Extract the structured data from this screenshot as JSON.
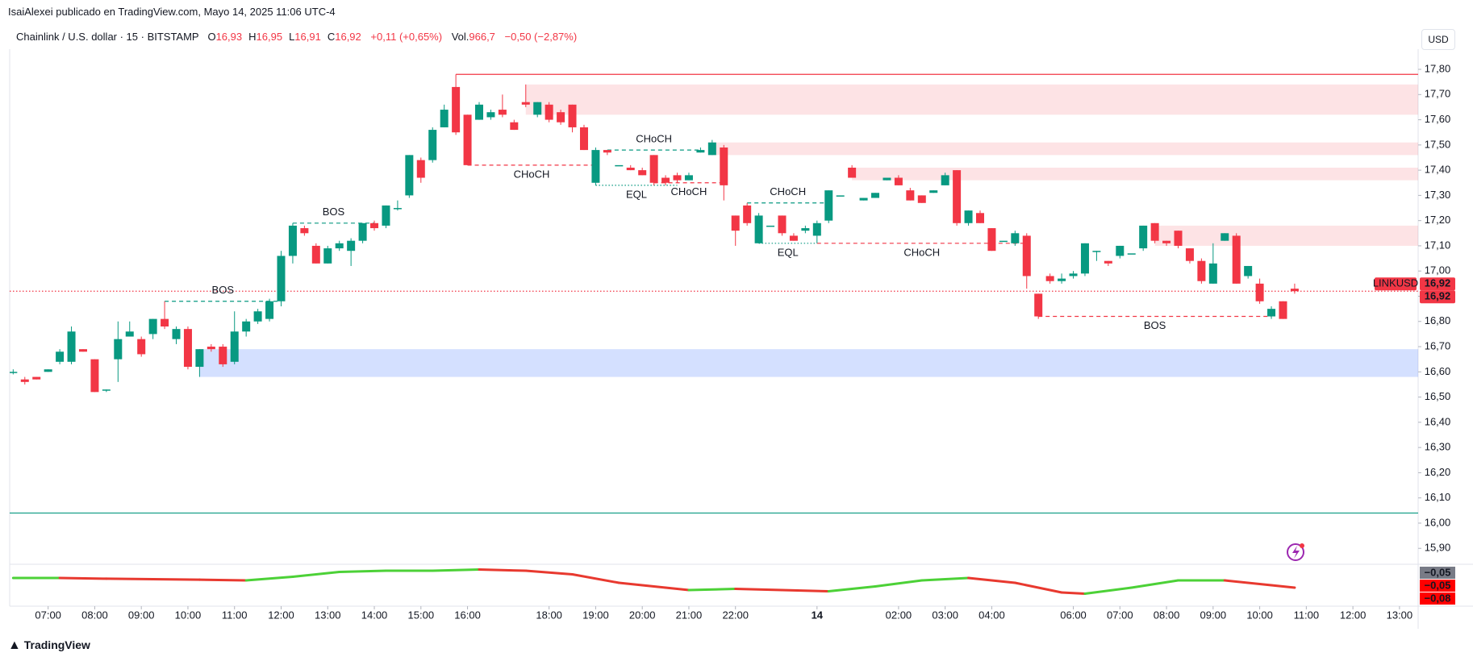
{
  "header": {
    "publisher": "IsaiAlexei publicado en TradingView.com, Mayo 14, 2025 11:06 UTC-4",
    "brand": "TradingView",
    "currency": "USD"
  },
  "chart_data": {
    "type": "candlestick",
    "legend": {
      "symbol": "Chainlink / U.S. dollar · 15 · BITSTAMP",
      "items": [
        {
          "key": "O",
          "value": "16,93"
        },
        {
          "key": "H",
          "value": "16,95"
        },
        {
          "key": "L",
          "value": "16,91"
        },
        {
          "key": "C",
          "value": "16,92"
        }
      ],
      "change": "+0,11 (+0,65%)",
      "volume_key": "Vol.",
      "volume": "966,7",
      "volume_change": "−0,50 (−2,87%)"
    },
    "up_color": "#089981",
    "down_color": "#f23645",
    "x": [
      0,
      1,
      2,
      3,
      4,
      5,
      6,
      7,
      8,
      9,
      10,
      11,
      12,
      13,
      14,
      15,
      16,
      17,
      18,
      19,
      20,
      21,
      22,
      23,
      24,
      25,
      26,
      27,
      28,
      29,
      30,
      31,
      32,
      33,
      34,
      35,
      36,
      37,
      38,
      39,
      40,
      41,
      42,
      43,
      44,
      45,
      46,
      47,
      48,
      49,
      50,
      51,
      52,
      53,
      54,
      55,
      56,
      57,
      58,
      59,
      60,
      61,
      62,
      63,
      64,
      65,
      66,
      67,
      68,
      69,
      70,
      71,
      72,
      73,
      74,
      75,
      76,
      77,
      78,
      79,
      80,
      81,
      82,
      83,
      84,
      85,
      86,
      87,
      88,
      89,
      90,
      91,
      92,
      93,
      94,
      95,
      96,
      97,
      98,
      99,
      100,
      101,
      102,
      103,
      104,
      105,
      106,
      107,
      108,
      109,
      110
    ],
    "open": [
      16.6,
      16.57,
      16.58,
      16.6,
      16.64,
      16.64,
      16.69,
      16.65,
      16.53,
      16.65,
      16.74,
      16.73,
      16.75,
      16.81,
      16.73,
      16.77,
      16.62,
      16.7,
      16.7,
      16.64,
      16.76,
      16.8,
      16.81,
      16.88,
      17.06,
      17.17,
      17.1,
      17.03,
      17.09,
      17.08,
      17.12,
      17.19,
      17.18,
      17.25,
      17.3,
      17.44,
      17.44,
      17.57,
      17.73,
      17.62,
      17.6,
      17.61,
      17.64,
      17.59,
      17.67,
      17.62,
      17.66,
      17.63,
      17.66,
      17.57,
      17.35,
      17.48,
      17.42,
      17.41,
      17.4,
      17.46,
      17.37,
      17.38,
      17.36,
      17.47,
      17.46,
      17.49,
      17.22,
      17.26,
      17.11,
      17.18,
      17.22,
      17.14,
      17.16,
      17.14,
      17.2,
      17.3,
      17.41,
      17.28,
      17.29,
      17.36,
      17.37,
      17.32,
      17.3,
      17.31,
      17.34,
      17.4,
      17.19,
      17.23,
      17.17,
      17.12,
      17.11,
      17.14,
      16.91,
      16.98,
      16.96,
      16.98,
      16.99,
      17.08,
      17.04,
      17.06,
      17.07,
      17.09,
      17.19,
      17.12,
      17.16,
      17.09,
      17.04,
      16.95,
      17.12,
      17.14,
      16.98,
      16.95,
      16.82,
      16.88,
      16.93
    ],
    "high": [
      16.61,
      16.58,
      16.58,
      16.61,
      16.69,
      16.78,
      16.69,
      16.65,
      16.53,
      16.8,
      16.8,
      16.74,
      16.81,
      16.88,
      16.78,
      16.78,
      16.69,
      16.71,
      16.71,
      16.84,
      16.81,
      16.85,
      16.89,
      17.08,
      17.19,
      17.18,
      17.11,
      17.1,
      17.12,
      17.13,
      17.19,
      17.2,
      17.26,
      17.28,
      17.46,
      17.45,
      17.57,
      17.66,
      17.78,
      17.62,
      17.67,
      17.64,
      17.7,
      17.6,
      17.74,
      17.67,
      17.67,
      17.64,
      17.66,
      17.58,
      17.49,
      17.48,
      17.42,
      17.42,
      17.41,
      17.46,
      17.38,
      17.39,
      17.39,
      17.49,
      17.52,
      17.5,
      17.22,
      17.27,
      17.23,
      17.18,
      17.22,
      17.15,
      17.18,
      17.2,
      17.32,
      17.3,
      17.42,
      17.29,
      17.31,
      17.37,
      17.38,
      17.33,
      17.3,
      17.32,
      17.39,
      17.4,
      17.24,
      17.24,
      17.17,
      17.12,
      17.16,
      17.15,
      16.91,
      16.99,
      16.99,
      17.0,
      17.11,
      17.08,
      17.04,
      17.1,
      17.07,
      17.18,
      17.19,
      17.12,
      17.16,
      17.09,
      17.05,
      17.11,
      17.15,
      17.15,
      17.02,
      16.97,
      16.86,
      16.88,
      16.95
    ],
    "low": [
      16.59,
      16.55,
      16.57,
      16.6,
      16.63,
      16.63,
      16.68,
      16.52,
      16.52,
      16.56,
      16.74,
      16.66,
      16.73,
      16.77,
      16.71,
      16.61,
      16.58,
      16.68,
      16.62,
      16.63,
      16.74,
      16.79,
      16.8,
      16.86,
      17.03,
      17.14,
      17.03,
      17.03,
      17.08,
      17.02,
      17.11,
      17.16,
      17.17,
      17.24,
      17.29,
      17.35,
      17.43,
      17.57,
      17.54,
      17.42,
      17.6,
      17.6,
      17.61,
      17.56,
      17.65,
      17.61,
      17.59,
      17.58,
      17.55,
      17.48,
      17.34,
      17.46,
      17.42,
      17.4,
      17.38,
      17.34,
      17.34,
      17.35,
      17.36,
      17.47,
      17.46,
      17.28,
      17.1,
      17.18,
      17.11,
      17.18,
      17.14,
      17.12,
      17.15,
      17.11,
      17.19,
      17.3,
      17.37,
      17.28,
      17.29,
      17.36,
      17.34,
      17.28,
      17.27,
      17.31,
      17.34,
      17.18,
      17.18,
      17.19,
      17.08,
      17.12,
      17.1,
      16.93,
      16.81,
      16.95,
      16.95,
      16.97,
      16.98,
      17.04,
      17.02,
      17.05,
      17.07,
      17.08,
      17.11,
      17.1,
      17.09,
      17.03,
      16.95,
      16.95,
      17.12,
      16.95,
      16.97,
      16.87,
      16.81,
      16.81,
      16.91
    ],
    "close": [
      16.6,
      16.56,
      16.57,
      16.61,
      16.68,
      16.76,
      16.68,
      16.52,
      16.53,
      16.73,
      16.76,
      16.67,
      16.81,
      16.78,
      16.77,
      16.62,
      16.69,
      16.69,
      16.63,
      16.76,
      16.8,
      16.84,
      16.88,
      17.06,
      17.18,
      17.15,
      17.03,
      17.09,
      17.11,
      17.12,
      17.19,
      17.17,
      17.26,
      17.25,
      17.46,
      17.37,
      17.56,
      17.64,
      17.55,
      17.42,
      17.66,
      17.63,
      17.62,
      17.56,
      17.66,
      17.67,
      17.6,
      17.59,
      17.57,
      17.48,
      17.48,
      17.47,
      17.42,
      17.4,
      17.38,
      17.35,
      17.35,
      17.36,
      17.38,
      17.48,
      17.51,
      17.34,
      17.16,
      17.19,
      17.22,
      17.18,
      17.15,
      17.12,
      17.17,
      17.19,
      17.32,
      17.3,
      17.37,
      17.29,
      17.31,
      17.37,
      17.34,
      17.28,
      17.27,
      17.32,
      17.38,
      17.19,
      17.24,
      17.19,
      17.08,
      17.12,
      17.15,
      16.98,
      16.82,
      16.96,
      16.97,
      16.99,
      17.11,
      17.08,
      17.03,
      17.1,
      17.07,
      17.18,
      17.12,
      17.11,
      17.1,
      17.04,
      16.96,
      17.03,
      17.15,
      16.95,
      17.02,
      16.88,
      16.85,
      16.81,
      16.92
    ],
    "xlim": [
      -0.3,
      120.6
    ],
    "xticks": [
      {
        "value": 3,
        "label": "07:00"
      },
      {
        "value": 7,
        "label": "08:00"
      },
      {
        "value": 11,
        "label": "09:00"
      },
      {
        "value": 15,
        "label": "10:00"
      },
      {
        "value": 19,
        "label": "11:00"
      },
      {
        "value": 23,
        "label": "12:00"
      },
      {
        "value": 27,
        "label": "13:00"
      },
      {
        "value": 31,
        "label": "14:00"
      },
      {
        "value": 35,
        "label": "15:00"
      },
      {
        "value": 39,
        "label": "16:00"
      },
      {
        "value": 46,
        "label": "18:00"
      },
      {
        "value": 50,
        "label": "19:00"
      },
      {
        "value": 54,
        "label": "20:00"
      },
      {
        "value": 58,
        "label": "21:00"
      },
      {
        "value": 62,
        "label": "22:00"
      },
      {
        "value": 69,
        "label": "14"
      },
      {
        "value": 76,
        "label": "02:00"
      },
      {
        "value": 80,
        "label": "03:00"
      },
      {
        "value": 84,
        "label": "04:00"
      },
      {
        "value": 91,
        "label": "06:00"
      },
      {
        "value": 95,
        "label": "07:00"
      },
      {
        "value": 99,
        "label": "08:00"
      },
      {
        "value": 103,
        "label": "09:00"
      },
      {
        "value": 107,
        "label": "10:00"
      },
      {
        "value": 111,
        "label": "11:00"
      },
      {
        "value": 115,
        "label": "12:00"
      },
      {
        "value": 119,
        "label": "13:00"
      }
    ],
    "ylim": [
      15.84,
      17.88
    ],
    "yticks": [
      {
        "value": 15.9,
        "label": "15,90"
      },
      {
        "value": 16.0,
        "label": "16,00"
      },
      {
        "value": 16.1,
        "label": "16,10"
      },
      {
        "value": 16.2,
        "label": "16,20"
      },
      {
        "value": 16.3,
        "label": "16,30"
      },
      {
        "value": 16.4,
        "label": "16,40"
      },
      {
        "value": 16.5,
        "label": "16,50"
      },
      {
        "value": 16.6,
        "label": "16,60"
      },
      {
        "value": 16.7,
        "label": "16,70"
      },
      {
        "value": 16.8,
        "label": "16,80"
      },
      {
        "value": 16.9,
        "label": "16,90"
      },
      {
        "value": 17.0,
        "label": "17,00"
      },
      {
        "value": 17.1,
        "label": "17,10"
      },
      {
        "value": 17.2,
        "label": "17,20"
      },
      {
        "value": 17.3,
        "label": "17,30"
      },
      {
        "value": 17.4,
        "label": "17,40"
      },
      {
        "value": 17.5,
        "label": "17,50"
      },
      {
        "value": 17.6,
        "label": "17,60"
      },
      {
        "value": 17.7,
        "label": "17,70"
      },
      {
        "value": 17.8,
        "label": "17,80"
      }
    ],
    "grid": false,
    "zones": [
      {
        "from": 44,
        "top": 17.74,
        "bottom": 17.62,
        "color": "#f23645"
      },
      {
        "from": 60,
        "top": 17.51,
        "bottom": 17.46,
        "color": "#f23645"
      },
      {
        "from": 72,
        "top": 17.41,
        "bottom": 17.36,
        "color": "#f23645"
      },
      {
        "from": 98,
        "top": 17.18,
        "bottom": 17.1,
        "color": "#f23645"
      },
      {
        "from": 16,
        "top": 16.69,
        "bottom": 16.58,
        "color": "#2962ff"
      }
    ],
    "levels": [
      {
        "price": 17.78,
        "from": 38,
        "color": "#f23645",
        "style": "solid"
      },
      {
        "price": 16.04,
        "color": "#089981",
        "style": "solid"
      },
      {
        "price": 16.92,
        "color": "#f23645",
        "style": "dotted"
      },
      {
        "price": 16.88,
        "from": 13,
        "to": 23,
        "color": "#089981",
        "style": "dashed",
        "label": "BOS",
        "label_pos": "above"
      },
      {
        "price": 17.19,
        "from": 24,
        "to": 31,
        "color": "#089981",
        "style": "dashed",
        "label": "BOS",
        "label_pos": "above"
      },
      {
        "price": 17.42,
        "from": 39,
        "to": 50,
        "color": "#f23645",
        "style": "dashed",
        "label": "CHoCH",
        "label_pos": "below"
      },
      {
        "price": 17.48,
        "from": 51,
        "to": 59,
        "color": "#089981",
        "style": "dashed",
        "label": "CHoCH",
        "label_pos": "above"
      },
      {
        "price": 17.34,
        "from": 50,
        "to": 57,
        "color": "#089981",
        "style": "dotted",
        "label": "EQL",
        "label_pos": "below"
      },
      {
        "price": 17.35,
        "from": 55,
        "to": 61,
        "color": "#f23645",
        "style": "dashed",
        "label": "CHoCH",
        "label_pos": "below"
      },
      {
        "price": 17.27,
        "from": 63,
        "to": 70,
        "color": "#089981",
        "style": "dashed",
        "label": "CHoCH",
        "label_pos": "above"
      },
      {
        "price": 17.11,
        "from": 64,
        "to": 69,
        "color": "#089981",
        "style": "dotted",
        "label": "EQL",
        "label_pos": "below"
      },
      {
        "price": 17.11,
        "from": 69,
        "to": 87,
        "color": "#f23645",
        "style": "dashed",
        "label": "CHoCH",
        "label_pos": "below"
      },
      {
        "price": 16.82,
        "from": 88,
        "to": 108,
        "color": "#f23645",
        "style": "dashed",
        "label": "BOS",
        "label_pos": "below"
      }
    ],
    "last_price": {
      "symbol": "LINKUSD",
      "value": 16.92,
      "label": "16,92"
    },
    "oscillator": {
      "x": [
        0,
        4,
        8,
        12,
        16,
        20,
        24,
        28,
        32,
        36,
        40,
        44,
        48,
        52,
        56,
        58,
        62,
        66,
        70,
        74,
        78,
        82,
        86,
        90,
        92,
        96,
        100,
        104,
        108,
        110
      ],
      "values": [
        -0.01,
        -0.01,
        -0.013,
        -0.015,
        -0.017,
        -0.02,
        -0.005,
        0.015,
        0.02,
        0.02,
        0.025,
        0.02,
        0.005,
        -0.03,
        -0.05,
        -0.06,
        -0.055,
        -0.06,
        -0.065,
        -0.045,
        -0.02,
        -0.01,
        -0.03,
        -0.07,
        -0.075,
        -0.05,
        -0.02,
        -0.02,
        -0.04,
        -0.05
      ],
      "ylim": [
        -0.12,
        0.04
      ],
      "up_color": "#4cd137",
      "down_color": "#e8392f",
      "labels": [
        "−0,05",
        "−0,05",
        "−0,08"
      ]
    }
  }
}
